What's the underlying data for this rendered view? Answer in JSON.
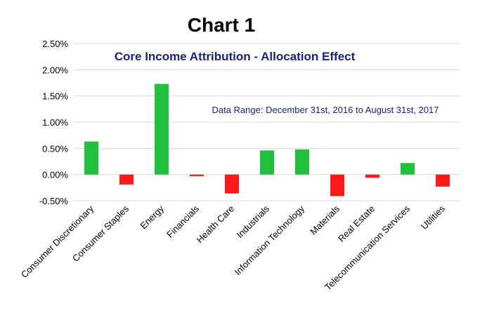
{
  "chart_data": {
    "type": "bar",
    "heading": "Chart 1",
    "title": "Core Income Attribution - Allocation Effect",
    "subtitle": "Data Range: December 31st, 2016 to August 31st, 2017",
    "categories": [
      "Consumer Discretionary",
      "Consumer Staples",
      "Energy",
      "Financials",
      "Health Care",
      "Industrials",
      "Information Technology",
      "Materials",
      "Real Estate",
      "Telecommunication Services",
      "Utilities"
    ],
    "values": [
      0.63,
      -0.19,
      1.73,
      -0.03,
      -0.36,
      0.46,
      0.48,
      -0.41,
      -0.06,
      0.22,
      -0.23
    ],
    "ylim": [
      -0.5,
      2.5
    ],
    "yticks": [
      -0.5,
      0.0,
      0.5,
      1.0,
      1.5,
      2.0,
      2.5
    ],
    "ytick_labels": [
      "-0.50%",
      "0.00%",
      "0.50%",
      "1.00%",
      "1.50%",
      "2.00%",
      "2.50%"
    ],
    "xlabel": "",
    "ylabel": "",
    "grid": true,
    "legend": false,
    "colors": {
      "positive": "#1fc13c",
      "negative": "#ff1a1a",
      "title": "#1a237e",
      "grid": "#d9d9d9"
    }
  }
}
